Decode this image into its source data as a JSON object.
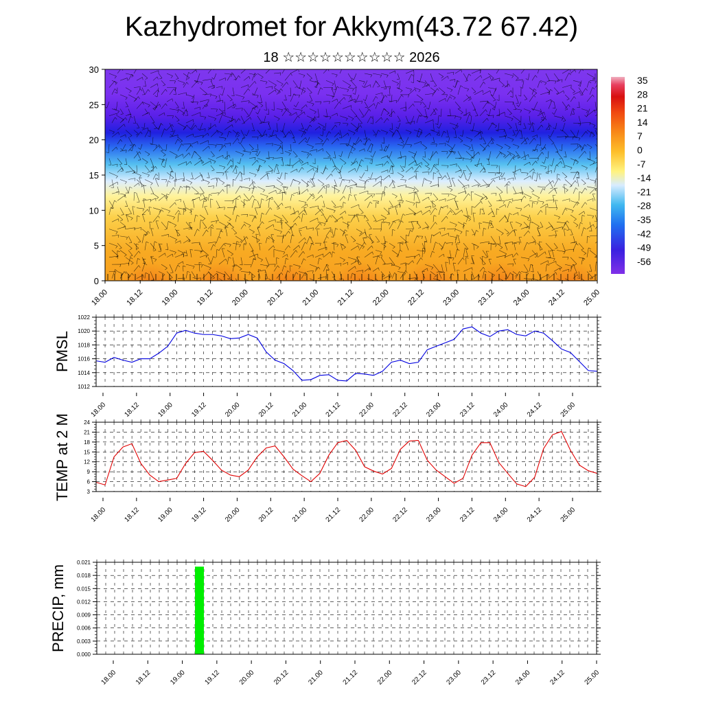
{
  "title": "Kazhydromet for Akkym(43.72 67.42)",
  "subtitle": "18 ☆☆☆☆☆☆☆☆☆☆ 2026",
  "x_ticks": [
    "18.00",
    "18.12",
    "19.00",
    "19.12",
    "20.00",
    "20.12",
    "21.00",
    "21.12",
    "22.00",
    "22.12",
    "23.00",
    "23.12",
    "24.00",
    "24.12",
    "25.00"
  ],
  "colors": {
    "pmsl_line": "#0000e0",
    "temp_line": "#e00000",
    "precip_bar": "#00ee00",
    "wind_barb": "#000000"
  },
  "colorbar": {
    "labels": [
      "35",
      "28",
      "21",
      "14",
      "7",
      "0",
      "-7",
      "-14",
      "-21",
      "-28",
      "-35",
      "-42",
      "-49",
      "-56"
    ]
  },
  "chart_data": [
    {
      "type": "heatmap",
      "name": "temperature-cross-section",
      "variable": "temperature with wind barbs",
      "xlabel": "",
      "ylabel": "",
      "x_range": [
        0,
        168
      ],
      "ylim": [
        0,
        30
      ],
      "y_ticks": [
        0,
        5,
        10,
        15,
        20,
        25,
        30
      ],
      "levels_approx_temp": [
        {
          "level": 0,
          "temp": 12
        },
        {
          "level": 5,
          "temp": 10
        },
        {
          "level": 10,
          "temp": 5
        },
        {
          "level": 14,
          "temp": -5
        },
        {
          "level": 17,
          "temp": -20
        },
        {
          "level": 20,
          "temp": -40
        },
        {
          "level": 22,
          "temp": -55
        },
        {
          "level": 25,
          "temp": -52
        },
        {
          "level": 30,
          "temp": -48
        }
      ]
    },
    {
      "type": "line",
      "name": "pmsl",
      "ylabel": "PMSL",
      "ylim": [
        1012,
        1022
      ],
      "y_ticks": [
        1012,
        1014,
        1016,
        1018,
        1020,
        1022
      ],
      "x_step_hours": 3,
      "values": [
        1015.7,
        1015.5,
        1016.2,
        1015.8,
        1015.5,
        1016.0,
        1016.0,
        1016.8,
        1017.8,
        1019.7,
        1020.1,
        1019.7,
        1019.5,
        1019.5,
        1019.3,
        1018.9,
        1019.0,
        1019.5,
        1019.0,
        1017.0,
        1015.8,
        1015.3,
        1014.3,
        1012.9,
        1013.0,
        1013.6,
        1013.7,
        1012.9,
        1012.8,
        1013.9,
        1013.8,
        1013.6,
        1014.2,
        1015.5,
        1015.8,
        1015.3,
        1015.5,
        1017.3,
        1017.8,
        1018.3,
        1018.8,
        1020.3,
        1020.6,
        1019.7,
        1019.2,
        1020.0,
        1020.2,
        1019.5,
        1019.3,
        1020.0,
        1019.7,
        1018.6,
        1017.4,
        1016.9,
        1015.6,
        1014.3,
        1014.2
      ]
    },
    {
      "type": "line",
      "name": "temp-2m",
      "ylabel": "TEMP at 2 M",
      "ylim": [
        3,
        24
      ],
      "y_ticks": [
        3,
        6,
        9,
        12,
        15,
        18,
        21,
        24
      ],
      "x_step_hours": 3,
      "values": [
        5.8,
        5.0,
        13.5,
        16.5,
        17.5,
        11.5,
        8.0,
        6.0,
        6.5,
        7.0,
        11.5,
        14.8,
        15.2,
        12.5,
        9.5,
        8.0,
        7.5,
        9.5,
        13.5,
        16.2,
        16.8,
        13.5,
        9.8,
        7.8,
        6.0,
        8.5,
        14.0,
        17.8,
        18.5,
        15.5,
        10.5,
        9.2,
        8.3,
        10.0,
        15.8,
        18.3,
        18.5,
        12.5,
        9.5,
        7.5,
        5.5,
        7.0,
        14.0,
        17.8,
        17.8,
        11.8,
        8.5,
        5.3,
        4.5,
        7.3,
        16.0,
        20.2,
        21.2,
        15.5,
        11.0,
        9.3,
        8.5
      ]
    },
    {
      "type": "bar",
      "name": "precip",
      "ylabel": "PRECIP, mm",
      "ylim": [
        0,
        0.021
      ],
      "y_ticks": [
        "0.000",
        "0.003",
        "0.006",
        "0.009",
        "0.012",
        "0.015",
        "0.018",
        "0.021"
      ],
      "bars": [
        {
          "start_hour": 33,
          "end_hour": 36,
          "value": 0.02
        }
      ]
    }
  ]
}
